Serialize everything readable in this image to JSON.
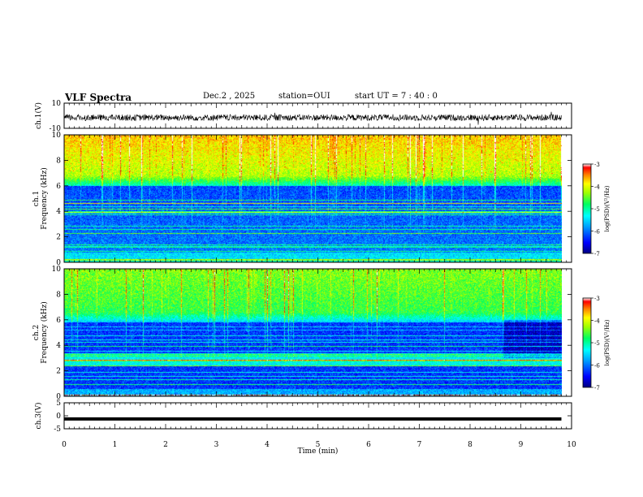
{
  "header": {
    "title": "VLF Spectra",
    "date": "Dec.2 , 2025",
    "station": "station=OUI",
    "start": "start UT = 7 : 40 : 0"
  },
  "chart_data": [
    {
      "type": "line",
      "ylabel": "ch.1(V)",
      "ylim": [
        -10,
        10
      ],
      "yticks": [
        "10",
        "-10"
      ],
      "xlim": [
        0,
        10
      ],
      "series": [
        {
          "baseline": -1.5,
          "noise_amplitude": 2.5
        }
      ]
    },
    {
      "type": "heatmap",
      "ylabel_line1": "ch.1",
      "ylabel_line2": "Frequency (kHz)",
      "ylim": [
        0,
        10
      ],
      "yticks": [
        "0",
        "2",
        "4",
        "6",
        "8",
        "10"
      ],
      "xlim": [
        0,
        10
      ],
      "data_end_min": 9.8,
      "colorbar": {
        "label": "log(PSD)(V²/Hz)",
        "range": [
          -7,
          -3
        ],
        "ticks": [
          "-3",
          "-4",
          "-5",
          "-6",
          "-7"
        ]
      }
    },
    {
      "type": "heatmap",
      "ylabel_line1": "ch.2",
      "ylabel_line2": "Frequency (kHz)",
      "ylim": [
        0,
        10
      ],
      "yticks": [
        "0",
        "2",
        "4",
        "6",
        "8",
        "10"
      ],
      "xlim": [
        0,
        10
      ],
      "data_end_min": 9.8,
      "colorbar": {
        "label": "log(PSD)(V²/Hz)",
        "range": [
          -7,
          -3
        ],
        "ticks": [
          "-3",
          "-4",
          "-5",
          "-6",
          "-7"
        ]
      }
    },
    {
      "type": "line",
      "ylabel": "ch.3(V)",
      "ylim": [
        -5,
        5
      ],
      "yticks": [
        "5",
        "0",
        "-5"
      ],
      "xlim": [
        0,
        10
      ],
      "series": [
        {
          "level": -1.2
        }
      ]
    }
  ],
  "xaxis": {
    "label": "Time (min)",
    "ticks": [
      "0",
      "1",
      "2",
      "3",
      "4",
      "5",
      "6",
      "7",
      "8",
      "9",
      "10"
    ]
  },
  "colors": {
    "colormap": [
      "#000080",
      "#0000ff",
      "#00a0ff",
      "#00ffff",
      "#00ff80",
      "#80ff00",
      "#ffff00",
      "#ff8000",
      "#ff0000",
      "#ffffff"
    ]
  }
}
